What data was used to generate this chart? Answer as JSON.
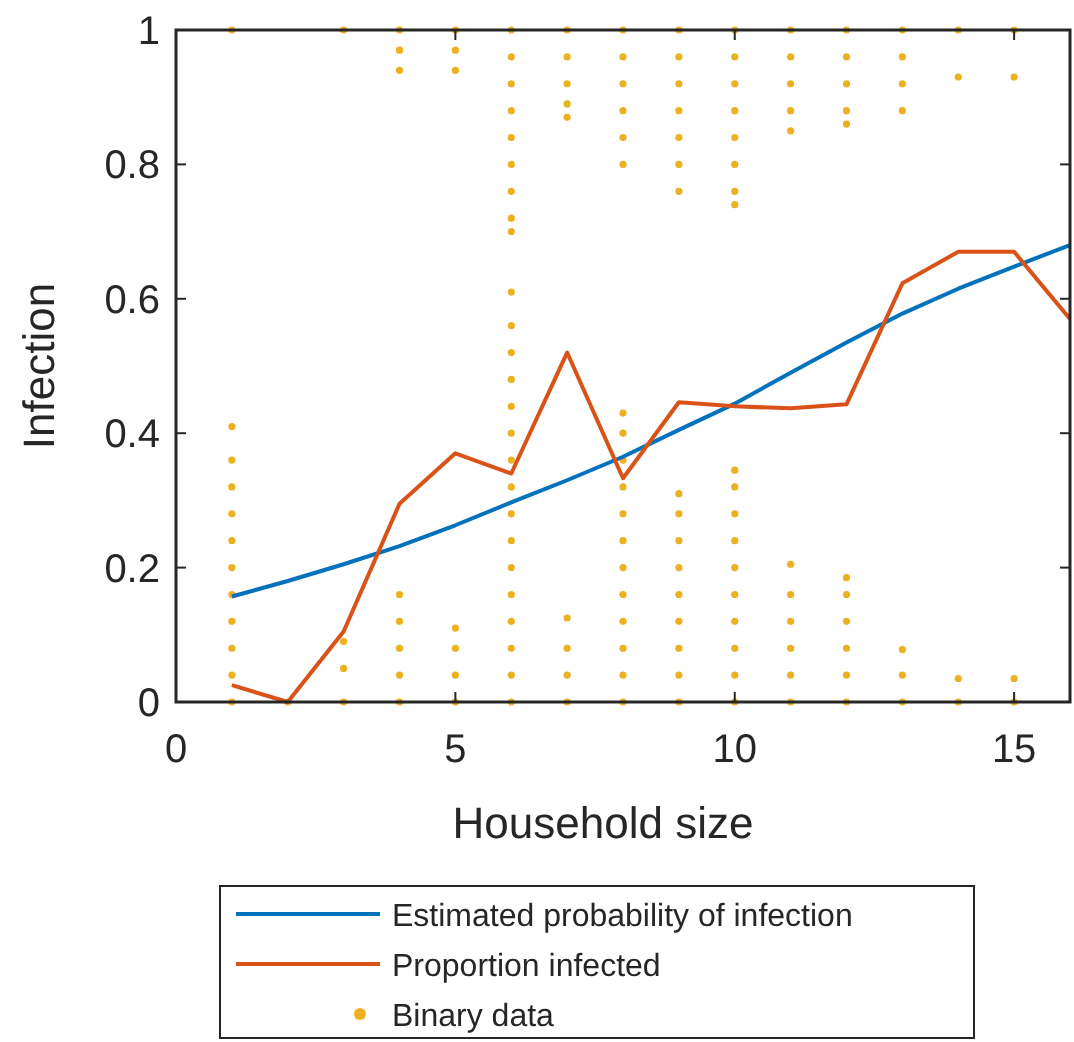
{
  "chart_data": {
    "type": "line",
    "xlabel": "Household size",
    "ylabel": "Infection",
    "xlim": [
      0,
      16
    ],
    "ylim": [
      0,
      1
    ],
    "xticks": [
      0,
      5,
      10,
      15
    ],
    "yticks": [
      0,
      0.2,
      0.4,
      0.6,
      0.8,
      1
    ],
    "grid": false,
    "legend": "bottom",
    "series": [
      {
        "name": "Estimated probability of infection",
        "color": "#0072bd",
        "x": [
          1,
          2,
          3,
          4,
          5,
          6,
          7,
          8,
          9,
          10,
          11,
          12,
          13,
          14,
          15,
          16
        ],
        "values": [
          0.157,
          0.18,
          0.205,
          0.232,
          0.263,
          0.297,
          0.33,
          0.365,
          0.405,
          0.444,
          0.49,
          0.535,
          0.578,
          0.615,
          0.648,
          0.68
        ]
      },
      {
        "name": "Proportion infected",
        "color": "#d95319",
        "x": [
          1,
          2,
          3,
          4,
          5,
          6,
          7,
          8,
          9,
          10,
          11,
          12,
          13,
          14,
          15,
          16
        ],
        "values": [
          0.025,
          0,
          0.105,
          0.295,
          0.37,
          0.34,
          0.52,
          0.333,
          0.446,
          0.44,
          0.437,
          0.443,
          0.623,
          0.67,
          0.67,
          0.57
        ]
      },
      {
        "name": "Binary data",
        "type": "scatter",
        "marker": "circle",
        "color": "#edb120",
        "x": [
          1,
          1,
          1,
          1,
          1,
          1,
          1,
          1,
          1,
          1,
          1,
          1,
          2,
          3,
          3,
          3,
          3,
          4,
          4,
          4,
          4,
          4,
          4,
          4,
          4,
          5,
          5,
          5,
          5,
          5,
          5,
          5,
          6,
          6,
          6,
          6,
          6,
          6,
          6,
          6,
          6,
          6,
          6,
          6,
          6,
          6,
          6,
          6,
          6,
          6,
          6,
          6,
          6,
          6,
          6,
          6,
          6,
          7,
          7,
          7,
          7,
          7,
          7,
          7,
          7,
          7,
          8,
          8,
          8,
          8,
          8,
          8,
          8,
          8,
          8,
          8,
          8,
          8,
          8,
          8,
          8,
          8,
          8,
          8,
          9,
          9,
          9,
          9,
          9,
          9,
          9,
          9,
          9,
          9,
          9,
          9,
          9,
          9,
          9,
          9,
          10,
          10,
          10,
          10,
          10,
          10,
          10,
          10,
          10,
          10,
          10,
          10,
          10,
          10,
          10,
          10,
          10,
          10,
          11,
          11,
          11,
          11,
          11,
          11,
          11,
          11,
          11,
          11,
          11,
          12,
          12,
          12,
          12,
          12,
          12,
          12,
          12,
          12,
          12,
          12,
          13,
          13,
          13,
          13,
          13,
          13,
          13,
          14,
          14,
          14,
          14,
          15,
          15,
          15,
          15
        ],
        "values": [
          0,
          0.04,
          0.08,
          0.12,
          0.16,
          0.2,
          0.24,
          0.28,
          0.32,
          0.36,
          0.41,
          1,
          0,
          0,
          0.05,
          0.09,
          1,
          0,
          0.04,
          0.08,
          0.12,
          0.16,
          1,
          0.97,
          0.94,
          0,
          0.04,
          0.08,
          0.11,
          1,
          0.97,
          0.94,
          0,
          0.04,
          0.08,
          0.12,
          0.16,
          0.2,
          0.24,
          0.28,
          0.32,
          0.36,
          0.4,
          0.44,
          0.48,
          0.52,
          0.56,
          0.61,
          1,
          0.96,
          0.92,
          0.88,
          0.84,
          0.8,
          0.76,
          0.72,
          0.7,
          0,
          0.04,
          0.08,
          0.125,
          1,
          0.96,
          0.92,
          0.89,
          0.87,
          0,
          0.04,
          0.08,
          0.12,
          0.16,
          0.2,
          0.24,
          0.28,
          0.32,
          0.36,
          0.4,
          0.43,
          1,
          0.96,
          0.92,
          0.88,
          0.84,
          0.8,
          0,
          0.04,
          0.08,
          0.12,
          0.16,
          0.2,
          0.24,
          0.28,
          0.31,
          1,
          0.96,
          0.92,
          0.88,
          0.84,
          0.8,
          0.76,
          0,
          0.04,
          0.08,
          0.12,
          0.16,
          0.2,
          0.24,
          0.28,
          0.32,
          0.345,
          1,
          0.96,
          0.92,
          0.88,
          0.84,
          0.8,
          0.76,
          0.74,
          0,
          0.04,
          0.08,
          0.12,
          0.16,
          0.205,
          1,
          0.96,
          0.92,
          0.88,
          0.85,
          0,
          0.04,
          0.08,
          0.12,
          0.16,
          0.185,
          1,
          0.96,
          0.92,
          0.88,
          0.86,
          0,
          0.04,
          0.078,
          1,
          0.96,
          0.92,
          0.88,
          0,
          0.035,
          1,
          0.93,
          0,
          0.035,
          1,
          0.93
        ]
      }
    ]
  }
}
